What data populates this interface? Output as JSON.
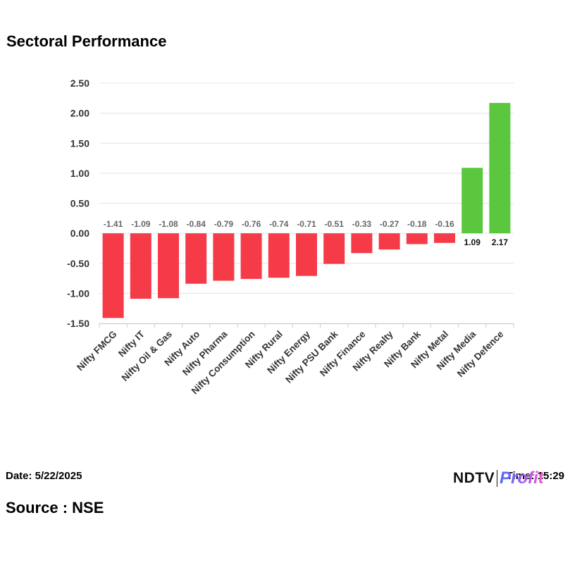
{
  "header": {
    "title": "Sectoral Performance"
  },
  "footer": {
    "date": "Date: 5/22/2025",
    "time": "Time: 15:29",
    "source": "Source : NSE",
    "logo_ndtv": "NDTV",
    "logo_profit": "Profit"
  },
  "colors": {
    "negative": "#f53b47",
    "positive": "#5ac73e"
  },
  "chart_data": {
    "type": "bar",
    "title": "Sectoral Performance",
    "xlabel": "",
    "ylabel": "",
    "ylim": [
      -1.5,
      2.5
    ],
    "yticks": [
      2.5,
      2.0,
      1.5,
      1.0,
      0.5,
      0.0,
      -0.5,
      -1.0,
      -1.5
    ],
    "ytick_labels": [
      "2.50",
      "2.00",
      "1.50",
      "1.00",
      "0.50",
      "0.00",
      "-0.50",
      "-1.00",
      "-1.50"
    ],
    "grid": true,
    "categories": [
      "Nifty FMCG",
      "Nifty IT",
      "Nifty Oil & Gas",
      "Nifty Auto",
      "Nifty Pharma",
      "Nifty Consumption",
      "Nifty Rural",
      "Nifty Energy",
      "Nifty PSU Bank",
      "Nifty Finance",
      "Nifty Realty",
      "Nifty Bank",
      "Nifty Metal",
      "Nifty Media",
      "Nifty Defence"
    ],
    "values": [
      -1.41,
      -1.09,
      -1.08,
      -0.84,
      -0.79,
      -0.76,
      -0.74,
      -0.71,
      -0.51,
      -0.33,
      -0.27,
      -0.18,
      -0.16,
      1.09,
      2.17
    ],
    "value_labels": [
      "-1.41",
      "-1.09",
      "-1.08",
      "-0.84",
      "-0.79",
      "-0.76",
      "-0.74",
      "-0.71",
      "-0.51",
      "-0.33",
      "-0.27",
      "-0.18",
      "-0.16",
      "1.09",
      "2.17"
    ]
  }
}
